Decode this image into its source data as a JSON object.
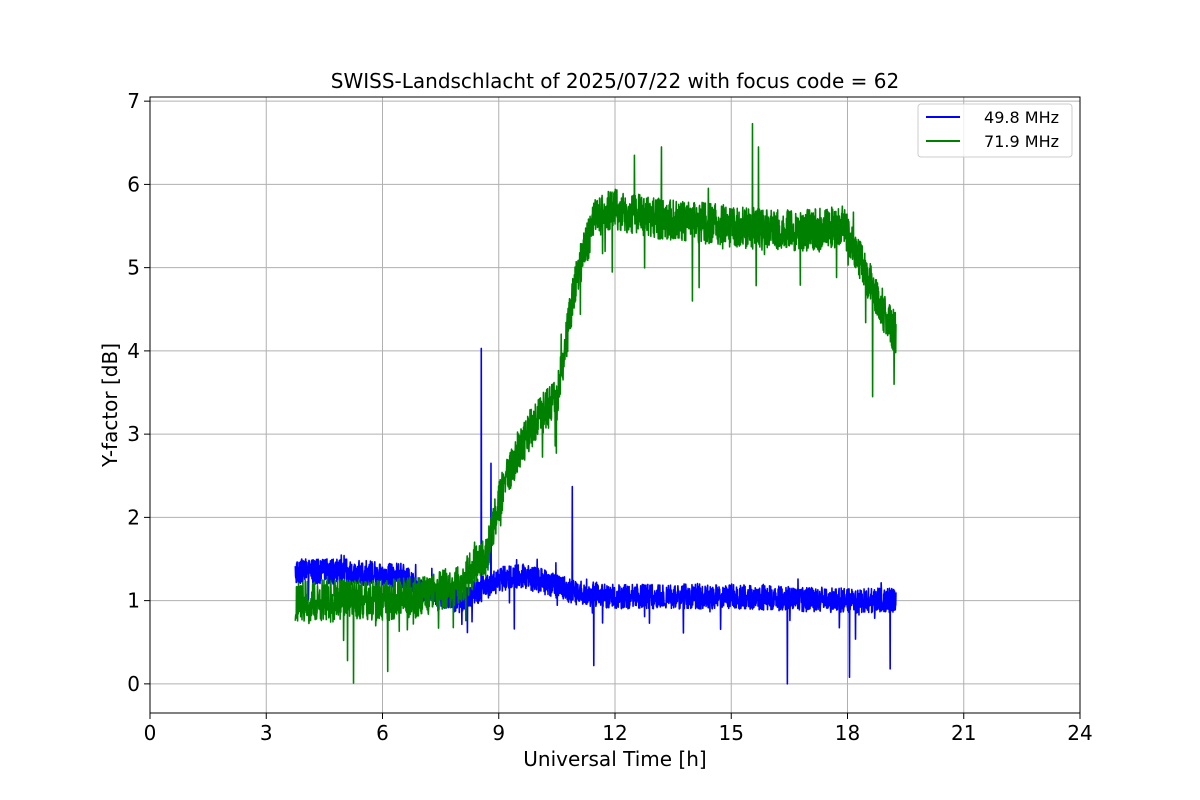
{
  "chart_data": {
    "type": "line",
    "title": "SWISS-Landschlacht of 2025/07/22 with focus code = 62",
    "xlabel": "Universal Time [h]",
    "ylabel": "Y-factor [dB]",
    "xlim": [
      0,
      24
    ],
    "ylim": [
      -0.35,
      7.05
    ],
    "xticks": [
      0,
      3,
      6,
      9,
      12,
      15,
      18,
      21,
      24
    ],
    "xtick_labels": [
      "0",
      "3",
      "6",
      "9",
      "12",
      "15",
      "18",
      "21",
      "24"
    ],
    "yticks": [
      0,
      1,
      2,
      3,
      4,
      5,
      6,
      7
    ],
    "ytick_labels": [
      "0",
      "1",
      "2",
      "3",
      "4",
      "5",
      "6",
      "7"
    ],
    "grid": true,
    "legend_position": "top-right",
    "series": [
      {
        "name": "49.8 MHz",
        "color": "#0000ff",
        "x_range": [
          3.75,
          19.25
        ],
        "anchors": [
          [
            3.75,
            1.35
          ],
          [
            5.0,
            1.35
          ],
          [
            6.5,
            1.3
          ],
          [
            7.0,
            1.1
          ],
          [
            8.0,
            1.0
          ],
          [
            9.0,
            1.25
          ],
          [
            9.5,
            1.3
          ],
          [
            10.0,
            1.25
          ],
          [
            11.0,
            1.1
          ],
          [
            12.0,
            1.05
          ],
          [
            15.0,
            1.05
          ],
          [
            18.0,
            1.0
          ],
          [
            19.25,
            1.0
          ]
        ],
        "noise_amplitude": 0.15,
        "spikes": [
          [
            8.55,
            4.03
          ],
          [
            8.8,
            2.65
          ],
          [
            10.9,
            2.37
          ],
          [
            9.4,
            1.78
          ],
          [
            16.45,
            0.0
          ],
          [
            11.45,
            0.22
          ],
          [
            18.05,
            0.08
          ],
          [
            19.1,
            0.18
          ],
          [
            9.4,
            0.66
          ]
        ]
      },
      {
        "name": "71.9 MHz",
        "color": "#008000",
        "x_range": [
          3.75,
          19.25
        ],
        "anchors": [
          [
            3.75,
            1.0
          ],
          [
            5.0,
            1.0
          ],
          [
            6.0,
            1.0
          ],
          [
            7.0,
            1.05
          ],
          [
            8.0,
            1.2
          ],
          [
            8.7,
            1.55
          ],
          [
            9.0,
            2.2
          ],
          [
            9.5,
            2.8
          ],
          [
            10.0,
            3.2
          ],
          [
            10.5,
            3.4
          ],
          [
            11.0,
            4.9
          ],
          [
            11.5,
            5.6
          ],
          [
            12.0,
            5.7
          ],
          [
            13.0,
            5.6
          ],
          [
            14.0,
            5.55
          ],
          [
            15.0,
            5.5
          ],
          [
            16.0,
            5.45
          ],
          [
            17.0,
            5.45
          ],
          [
            17.9,
            5.5
          ],
          [
            18.5,
            4.9
          ],
          [
            19.0,
            4.4
          ],
          [
            19.25,
            4.2
          ]
        ],
        "noise_amplitude": 0.25,
        "spikes": [
          [
            15.55,
            6.73
          ],
          [
            15.7,
            6.45
          ],
          [
            12.5,
            6.35
          ],
          [
            13.2,
            6.45
          ],
          [
            14.0,
            4.6
          ],
          [
            18.65,
            3.45
          ],
          [
            5.25,
            0.01
          ],
          [
            5.1,
            0.28
          ],
          [
            19.2,
            3.6
          ]
        ]
      }
    ]
  }
}
